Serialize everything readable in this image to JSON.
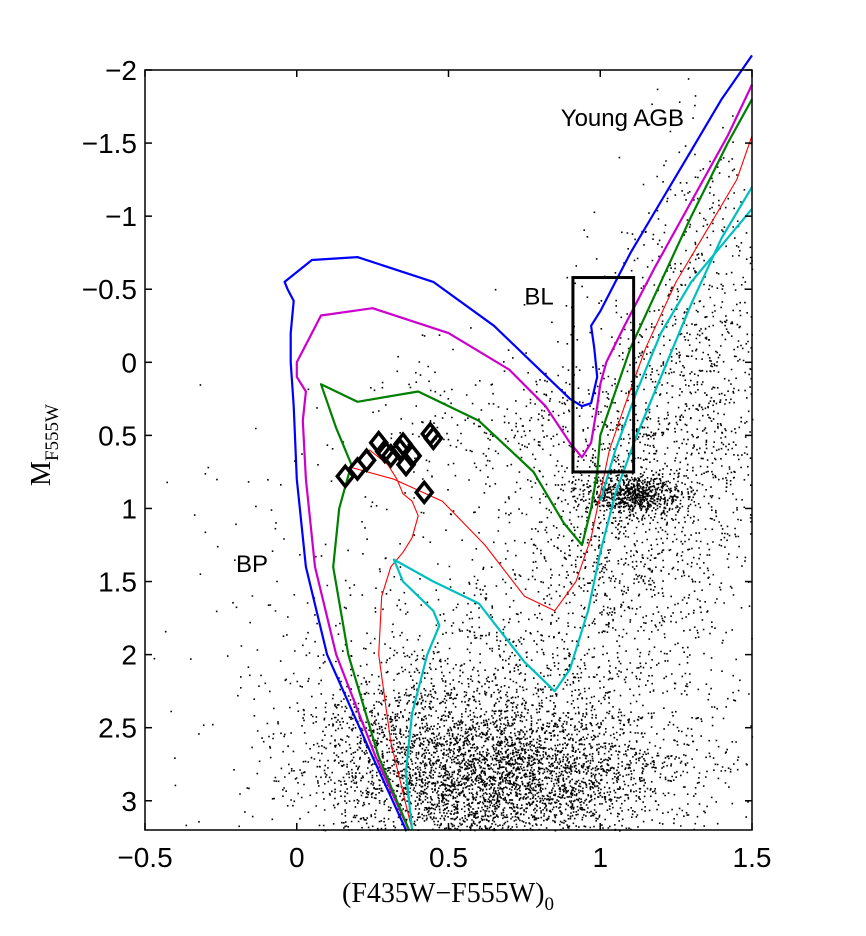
{
  "chart_data": {
    "type": "scatter",
    "xlabel": {
      "main": "(F435W−F555W)",
      "sub": "0"
    },
    "ylabel": {
      "main": "M",
      "sub": "F555W"
    },
    "xlim": [
      -0.5,
      1.5
    ],
    "ylim": [
      3.2,
      -2.0
    ],
    "y_inverted": true,
    "xticks": [
      -0.5,
      0,
      0.5,
      1,
      1.5
    ],
    "xtick_labels": [
      "−0.5",
      "0",
      "0.5",
      "1",
      "1.5"
    ],
    "yticks": [
      -2,
      -1.5,
      -1,
      -0.5,
      0,
      0.5,
      1,
      1.5,
      2,
      2.5,
      3
    ],
    "ytick_labels": [
      "−2",
      "−1.5",
      "−1",
      "−0.5",
      "0",
      "0.5",
      "1",
      "1.5",
      "2",
      "2.5",
      "3"
    ],
    "grid": false,
    "annotations": [
      {
        "text": "Young AGB",
        "x": 0.87,
        "y": -1.67
      },
      {
        "text": "BL",
        "x": 0.75,
        "y": -0.45
      },
      {
        "text": "BP",
        "x": -0.2,
        "y": 1.38
      }
    ],
    "bl_box": {
      "x0": 0.91,
      "x1": 1.11,
      "y0": 0.75,
      "y1": -0.58
    },
    "background_stars": {
      "description": "field stars (black dots)",
      "clumps": [
        {
          "cx": 0.65,
          "cy": 2.85,
          "sx": 0.28,
          "sy": 0.25,
          "n": 3200
        },
        {
          "cx": 0.42,
          "cy": 2.5,
          "sx": 0.22,
          "sy": 0.3,
          "n": 900
        },
        {
          "cx": 0.9,
          "cy": 2.4,
          "sx": 0.3,
          "sy": 0.5,
          "n": 1100
        },
        {
          "cx": 1.1,
          "cy": 0.9,
          "sx": 0.08,
          "sy": 0.07,
          "n": 700
        },
        {
          "cx": 1.05,
          "cy": 1.3,
          "sx": 0.2,
          "sy": 0.4,
          "n": 700
        },
        {
          "cx": 1.25,
          "cy": 0.4,
          "sx": 0.18,
          "sy": 0.6,
          "n": 900
        },
        {
          "cx": 1.35,
          "cy": -0.6,
          "sx": 0.12,
          "sy": 0.6,
          "n": 300
        },
        {
          "cx": 0.75,
          "cy": 0.4,
          "sx": 0.25,
          "sy": 0.25,
          "n": 300
        },
        {
          "cx": 0.2,
          "cy": 1.8,
          "sx": 0.35,
          "sy": 0.7,
          "n": 250
        }
      ]
    },
    "highlighted_stars": {
      "marker": "diamond",
      "points": [
        {
          "x": 0.16,
          "y": 0.78
        },
        {
          "x": 0.2,
          "y": 0.73
        },
        {
          "x": 0.23,
          "y": 0.67
        },
        {
          "x": 0.27,
          "y": 0.55
        },
        {
          "x": 0.29,
          "y": 0.61
        },
        {
          "x": 0.31,
          "y": 0.64
        },
        {
          "x": 0.34,
          "y": 0.6
        },
        {
          "x": 0.35,
          "y": 0.56
        },
        {
          "x": 0.36,
          "y": 0.7
        },
        {
          "x": 0.38,
          "y": 0.64
        },
        {
          "x": 0.42,
          "y": 0.89
        },
        {
          "x": 0.44,
          "y": 0.49
        },
        {
          "x": 0.45,
          "y": 0.52
        }
      ]
    },
    "series": [
      {
        "name": "blue",
        "color": "#0000ff",
        "width": 2.2,
        "x": [
          0.36,
          0.25,
          0.1,
          0.03,
          0.0,
          -0.01,
          -0.02,
          -0.02,
          -0.01,
          -0.03,
          -0.04,
          0.05,
          0.2,
          0.45,
          0.65,
          0.8,
          0.9,
          0.94,
          0.97,
          0.99,
          0.98,
          0.97,
          1.0,
          1.05,
          1.1,
          1.2,
          1.3,
          1.4,
          1.5
        ],
        "y": [
          3.2,
          2.7,
          2.0,
          1.4,
          0.8,
          0.3,
          0.0,
          -0.2,
          -0.42,
          -0.5,
          -0.55,
          -0.7,
          -0.72,
          -0.55,
          -0.25,
          0.05,
          0.25,
          0.3,
          0.28,
          0.1,
          -0.1,
          -0.25,
          -0.35,
          -0.55,
          -0.75,
          -1.1,
          -1.45,
          -1.8,
          -2.1
        ]
      },
      {
        "name": "magenta",
        "color": "#cc00cc",
        "width": 2.2,
        "x": [
          0.37,
          0.26,
          0.13,
          0.06,
          0.03,
          0.02,
          0.03,
          0.0,
          0.0,
          0.08,
          0.25,
          0.5,
          0.7,
          0.82,
          0.9,
          0.94,
          0.97,
          0.99,
          1.0,
          1.02,
          1.08,
          1.18,
          1.3,
          1.42,
          1.5
        ],
        "y": [
          3.2,
          2.7,
          2.0,
          1.4,
          0.8,
          0.4,
          0.2,
          0.1,
          0.0,
          -0.32,
          -0.37,
          -0.2,
          0.05,
          0.3,
          0.55,
          0.65,
          0.55,
          0.3,
          0.15,
          0.0,
          -0.25,
          -0.65,
          -1.1,
          -1.55,
          -1.9
        ]
      },
      {
        "name": "green",
        "color": "#007f00",
        "width": 2.2,
        "x": [
          0.37,
          0.27,
          0.17,
          0.12,
          0.14,
          0.18,
          0.13,
          0.08,
          0.2,
          0.4,
          0.6,
          0.78,
          0.88,
          0.94,
          0.97,
          0.99,
          1.0,
          1.05,
          1.1,
          1.2,
          1.3,
          1.42,
          1.5
        ],
        "y": [
          3.2,
          2.7,
          2.0,
          1.4,
          1.0,
          0.7,
          0.45,
          0.15,
          0.27,
          0.2,
          0.4,
          0.75,
          1.1,
          1.25,
          1.0,
          0.75,
          0.5,
          0.2,
          -0.1,
          -0.55,
          -1.0,
          -1.5,
          -1.8
        ]
      },
      {
        "name": "red",
        "color": "#ff0000",
        "width": 1.1,
        "x": [
          0.38,
          0.31,
          0.27,
          0.28,
          0.31,
          0.35,
          0.38,
          0.4,
          0.38,
          0.35,
          0.33,
          0.3,
          0.24,
          0.18,
          0.32,
          0.48,
          0.62,
          0.75,
          0.85,
          0.92,
          0.97,
          1.0,
          1.03,
          1.08,
          1.15,
          1.25,
          1.35,
          1.45,
          1.5
        ],
        "y": [
          3.2,
          2.6,
          2.0,
          1.6,
          1.4,
          1.3,
          1.2,
          1.05,
          0.95,
          0.9,
          0.8,
          0.7,
          0.6,
          0.72,
          0.8,
          0.95,
          1.25,
          1.6,
          1.7,
          1.5,
          1.2,
          0.9,
          0.6,
          0.3,
          -0.1,
          -0.55,
          -0.9,
          -1.25,
          -1.55
        ]
      },
      {
        "name": "cyan",
        "color": "#00bfbf",
        "width": 2.2,
        "x": [
          0.38,
          0.36,
          0.38,
          0.43,
          0.47,
          0.45,
          0.35,
          0.32,
          0.45,
          0.6,
          0.75,
          0.85,
          0.9,
          0.96,
          1.0,
          1.05,
          1.12,
          1.2,
          1.3,
          1.4,
          1.5
        ],
        "y": [
          3.2,
          2.8,
          2.4,
          2.0,
          1.8,
          1.7,
          1.5,
          1.35,
          1.5,
          1.65,
          2.05,
          2.25,
          2.1,
          1.7,
          1.3,
          0.9,
          0.5,
          0.1,
          -0.4,
          -0.85,
          -1.2
        ]
      },
      {
        "name": "cyan-2",
        "color": "#00bfbf",
        "width": 2.2,
        "x": [
          1.0,
          1.05,
          1.12,
          1.2,
          1.3,
          1.42,
          1.5
        ],
        "y": [
          0.95,
          0.6,
          0.2,
          -0.2,
          -0.55,
          -0.85,
          -1.05
        ]
      }
    ]
  }
}
